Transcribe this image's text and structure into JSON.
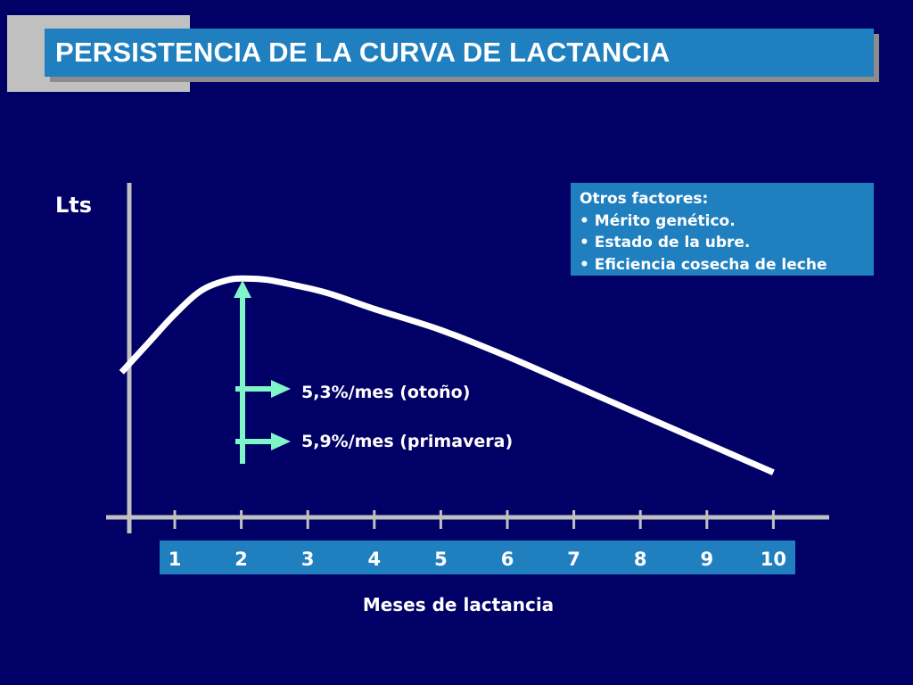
{
  "title": "PERSISTENCIA DE LA CURVA DE LACTANCIA",
  "colors": {
    "background": "#000066",
    "panel": "#1f7fbf",
    "axis": "#c0c0c0",
    "curve": "#ffffff",
    "arrow": "#80f5c8",
    "text": "#ffffff"
  },
  "factors": {
    "heading": "Otros factores:",
    "items": [
      "• Mérito genético.",
      "• Estado de la ubre.",
      "• Eficiencia cosecha de leche"
    ]
  },
  "chart_data": {
    "type": "line",
    "ylabel": "Lts",
    "xlabel": "Meses de lactancia",
    "x_ticks": [
      "1",
      "2",
      "3",
      "4",
      "5",
      "6",
      "7",
      "8",
      "9",
      "10"
    ],
    "xlim": [
      0.2,
      11
    ],
    "ylim": [
      0,
      1
    ],
    "series": [
      {
        "x": [
          0.2,
          0.6,
          1.0,
          1.4,
          1.8,
          2.1,
          2.4,
          2.8,
          3.3,
          4.0,
          5.0,
          6.0,
          7.0,
          8.0,
          9.0,
          10.0
        ],
        "y": [
          0.55,
          0.66,
          0.77,
          0.86,
          0.9,
          0.905,
          0.9,
          0.88,
          0.85,
          0.79,
          0.71,
          0.61,
          0.5,
          0.39,
          0.28,
          0.17
        ]
      }
    ],
    "annotations": {
      "arrow_label_1": "5,3%/mes (otoño)",
      "arrow_label_2": "5,9%/mes (primavera)"
    },
    "grid": false
  }
}
